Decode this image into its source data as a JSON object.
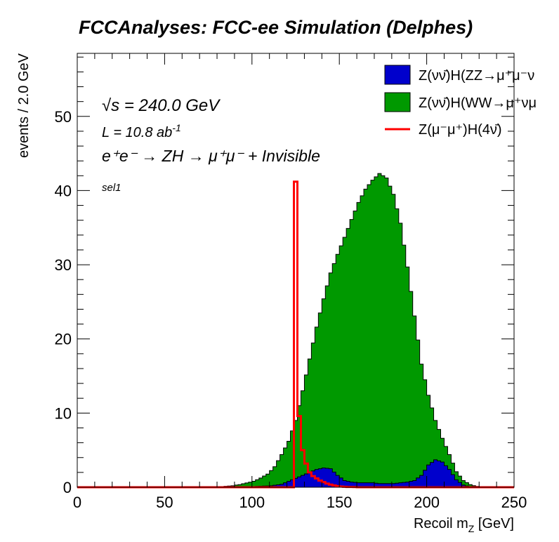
{
  "chart_data": {
    "type": "histogram",
    "title": "FCCAnalyses: FCC-ee Simulation (Delphes)",
    "xlabel": "Recoil m_Z [GeV]",
    "xlabel_main": "Recoil m",
    "xlabel_sub": "Z",
    "xlabel_unit": " [GeV]",
    "ylabel": "events / 2.0 GeV",
    "xlim": [
      0,
      250
    ],
    "ylim": [
      0,
      58.5
    ],
    "xticks": [
      0,
      50,
      100,
      150,
      200,
      250
    ],
    "yticks": [
      0,
      10,
      20,
      30,
      40,
      50
    ],
    "bin_width": 2.0,
    "annotations": {
      "sqrt_s": "√s = 240.0 GeV",
      "lumi": "L = 10.8 ab",
      "lumi_exp": "-1",
      "process": "e⁺e⁻ → ZH → μ⁺μ⁻ + Invisible",
      "selection": "sel1"
    },
    "stack_order": [
      "Z(νν̄)H(ZZ→μ⁺μ⁻ν",
      "Z(νν̄)H(WW→μ⁺νμ"
    ],
    "series": [
      {
        "name": "Z(νν̄)H(ZZ→μ⁺μ⁻ν",
        "style": "filled",
        "color": "#0000cc",
        "edge": "#000000",
        "bins": [
          [
            90,
            0.05
          ],
          [
            100,
            0.1
          ],
          [
            110,
            0.2
          ],
          [
            116,
            0.4
          ],
          [
            120,
            0.8
          ],
          [
            124,
            1.2
          ],
          [
            128,
            1.6
          ],
          [
            132,
            2.0
          ],
          [
            136,
            2.4
          ],
          [
            140,
            2.6
          ],
          [
            144,
            2.5
          ],
          [
            148,
            1.6
          ],
          [
            152,
            0.9
          ],
          [
            156,
            0.7
          ],
          [
            160,
            0.6
          ],
          [
            164,
            0.6
          ],
          [
            168,
            0.6
          ],
          [
            172,
            0.5
          ],
          [
            176,
            0.5
          ],
          [
            180,
            0.5
          ],
          [
            184,
            0.6
          ],
          [
            188,
            0.7
          ],
          [
            192,
            0.9
          ],
          [
            196,
            1.6
          ],
          [
            200,
            3.0
          ],
          [
            204,
            3.7
          ],
          [
            208,
            3.4
          ],
          [
            212,
            2.4
          ],
          [
            216,
            1.0
          ],
          [
            220,
            0.3
          ],
          [
            224,
            0.05
          ]
        ]
      },
      {
        "name": "Z(νν̄)H(WW→μ⁺νμ",
        "style": "filled",
        "color": "#009900",
        "edge": "#000000",
        "bins": [
          [
            80,
            0.05
          ],
          [
            88,
            0.2
          ],
          [
            92,
            0.3
          ],
          [
            96,
            0.5
          ],
          [
            100,
            0.7
          ],
          [
            104,
            1.1
          ],
          [
            108,
            1.6
          ],
          [
            112,
            2.5
          ],
          [
            116,
            4.0
          ],
          [
            120,
            5.4
          ],
          [
            124,
            7.8
          ],
          [
            128,
            11.4
          ],
          [
            132,
            15.3
          ],
          [
            136,
            19.2
          ],
          [
            140,
            22.8
          ],
          [
            144,
            26.4
          ],
          [
            148,
            29.8
          ],
          [
            152,
            32.8
          ],
          [
            156,
            35.4
          ],
          [
            160,
            37.8
          ],
          [
            164,
            39.6
          ],
          [
            168,
            40.8
          ],
          [
            172,
            41.8
          ],
          [
            176,
            41.2
          ],
          [
            180,
            39.0
          ],
          [
            184,
            35.0
          ],
          [
            188,
            29.0
          ],
          [
            192,
            22.2
          ],
          [
            196,
            15.0
          ],
          [
            200,
            9.4
          ],
          [
            204,
            5.3
          ],
          [
            208,
            3.2
          ],
          [
            212,
            2.0
          ],
          [
            216,
            1.1
          ],
          [
            220,
            0.6
          ],
          [
            224,
            0.3
          ],
          [
            228,
            0.12
          ],
          [
            232,
            0.04
          ]
        ]
      },
      {
        "name": "Z(μ⁻μ⁺)H(4ν̄)",
        "style": "line",
        "color": "#ff0000",
        "bins": [
          [
            124,
            41.2
          ],
          [
            126,
            9.6
          ],
          [
            128,
            5.0
          ],
          [
            130,
            3.2
          ],
          [
            132,
            2.0
          ],
          [
            134,
            1.5
          ],
          [
            136,
            1.2
          ],
          [
            138,
            0.9
          ],
          [
            140,
            0.7
          ],
          [
            142,
            0.5
          ],
          [
            144,
            0.35
          ],
          [
            146,
            0.25
          ],
          [
            148,
            0.15
          ],
          [
            150,
            0.1
          ],
          [
            152,
            0.06
          ],
          [
            154,
            0.04
          ],
          [
            158,
            0.02
          ]
        ]
      }
    ],
    "legend": {
      "placement": "top-right",
      "entries": [
        {
          "label": "Z(νν̄)H(ZZ→μ⁺μ⁻ν",
          "color": "#0000cc",
          "style": "box"
        },
        {
          "label": "Z(νν̄)H(WW→μ⁺νμ",
          "color": "#009900",
          "style": "box"
        },
        {
          "label": "Z(μ⁻μ⁺)H(4ν̄)",
          "color": "#ff0000",
          "style": "line"
        }
      ]
    }
  }
}
